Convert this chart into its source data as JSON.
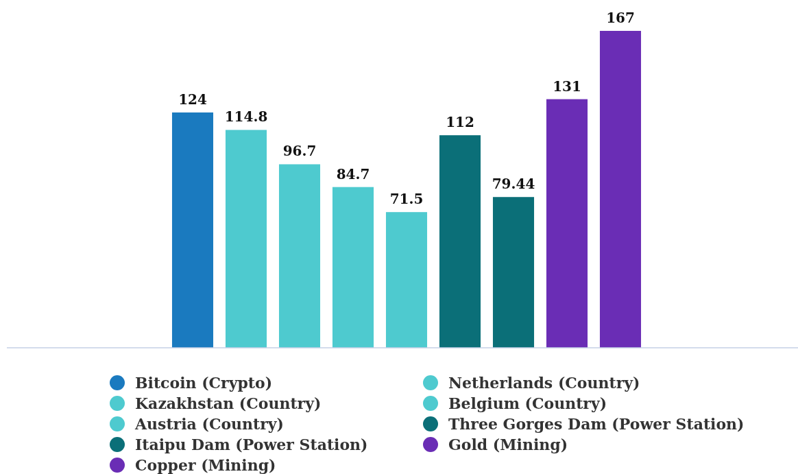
{
  "chart_data": {
    "type": "bar",
    "categories": [
      null,
      null,
      null,
      null,
      null,
      null,
      null,
      null,
      null
    ],
    "series": [
      {
        "name": "Bitcoin (Crypto)",
        "color": "#1a7abf",
        "values": [
          124,
          null,
          null,
          null,
          null,
          null,
          null,
          null,
          null
        ]
      },
      {
        "name": "Netherlands (Country)",
        "color": "#4ecacf",
        "values": [
          null,
          114.8,
          null,
          null,
          null,
          null,
          null,
          null,
          null
        ]
      },
      {
        "name": "Kazakhstan (Country)",
        "color": "#4ecacf",
        "values": [
          null,
          null,
          96.7,
          null,
          null,
          null,
          null,
          null,
          null
        ]
      },
      {
        "name": "Belgium (Country)",
        "color": "#4ecacf",
        "values": [
          null,
          null,
          null,
          84.7,
          null,
          null,
          null,
          null,
          null
        ]
      },
      {
        "name": "Austria (Country)",
        "color": "#4ecacf",
        "values": [
          null,
          null,
          null,
          null,
          71.5,
          null,
          null,
          null,
          null
        ]
      },
      {
        "name": "Three Gorges Dam (Power Station)",
        "color": "#0b6f78",
        "values": [
          null,
          null,
          null,
          null,
          null,
          112,
          null,
          null,
          null
        ]
      },
      {
        "name": "Itaipu Dam (Power Station)",
        "color": "#0b6f78",
        "values": [
          null,
          null,
          null,
          null,
          null,
          null,
          79.44,
          null,
          null
        ]
      },
      {
        "name": "Gold (Mining)",
        "color": "#6a2db5",
        "values": [
          null,
          null,
          null,
          null,
          null,
          null,
          null,
          131,
          null
        ]
      },
      {
        "name": "Copper (Mining)",
        "color": "#6a2db5",
        "values": [
          null,
          null,
          null,
          null,
          null,
          null,
          null,
          null,
          167
        ]
      }
    ],
    "stacked": true,
    "data_labels": true,
    "legend": "bottom"
  }
}
